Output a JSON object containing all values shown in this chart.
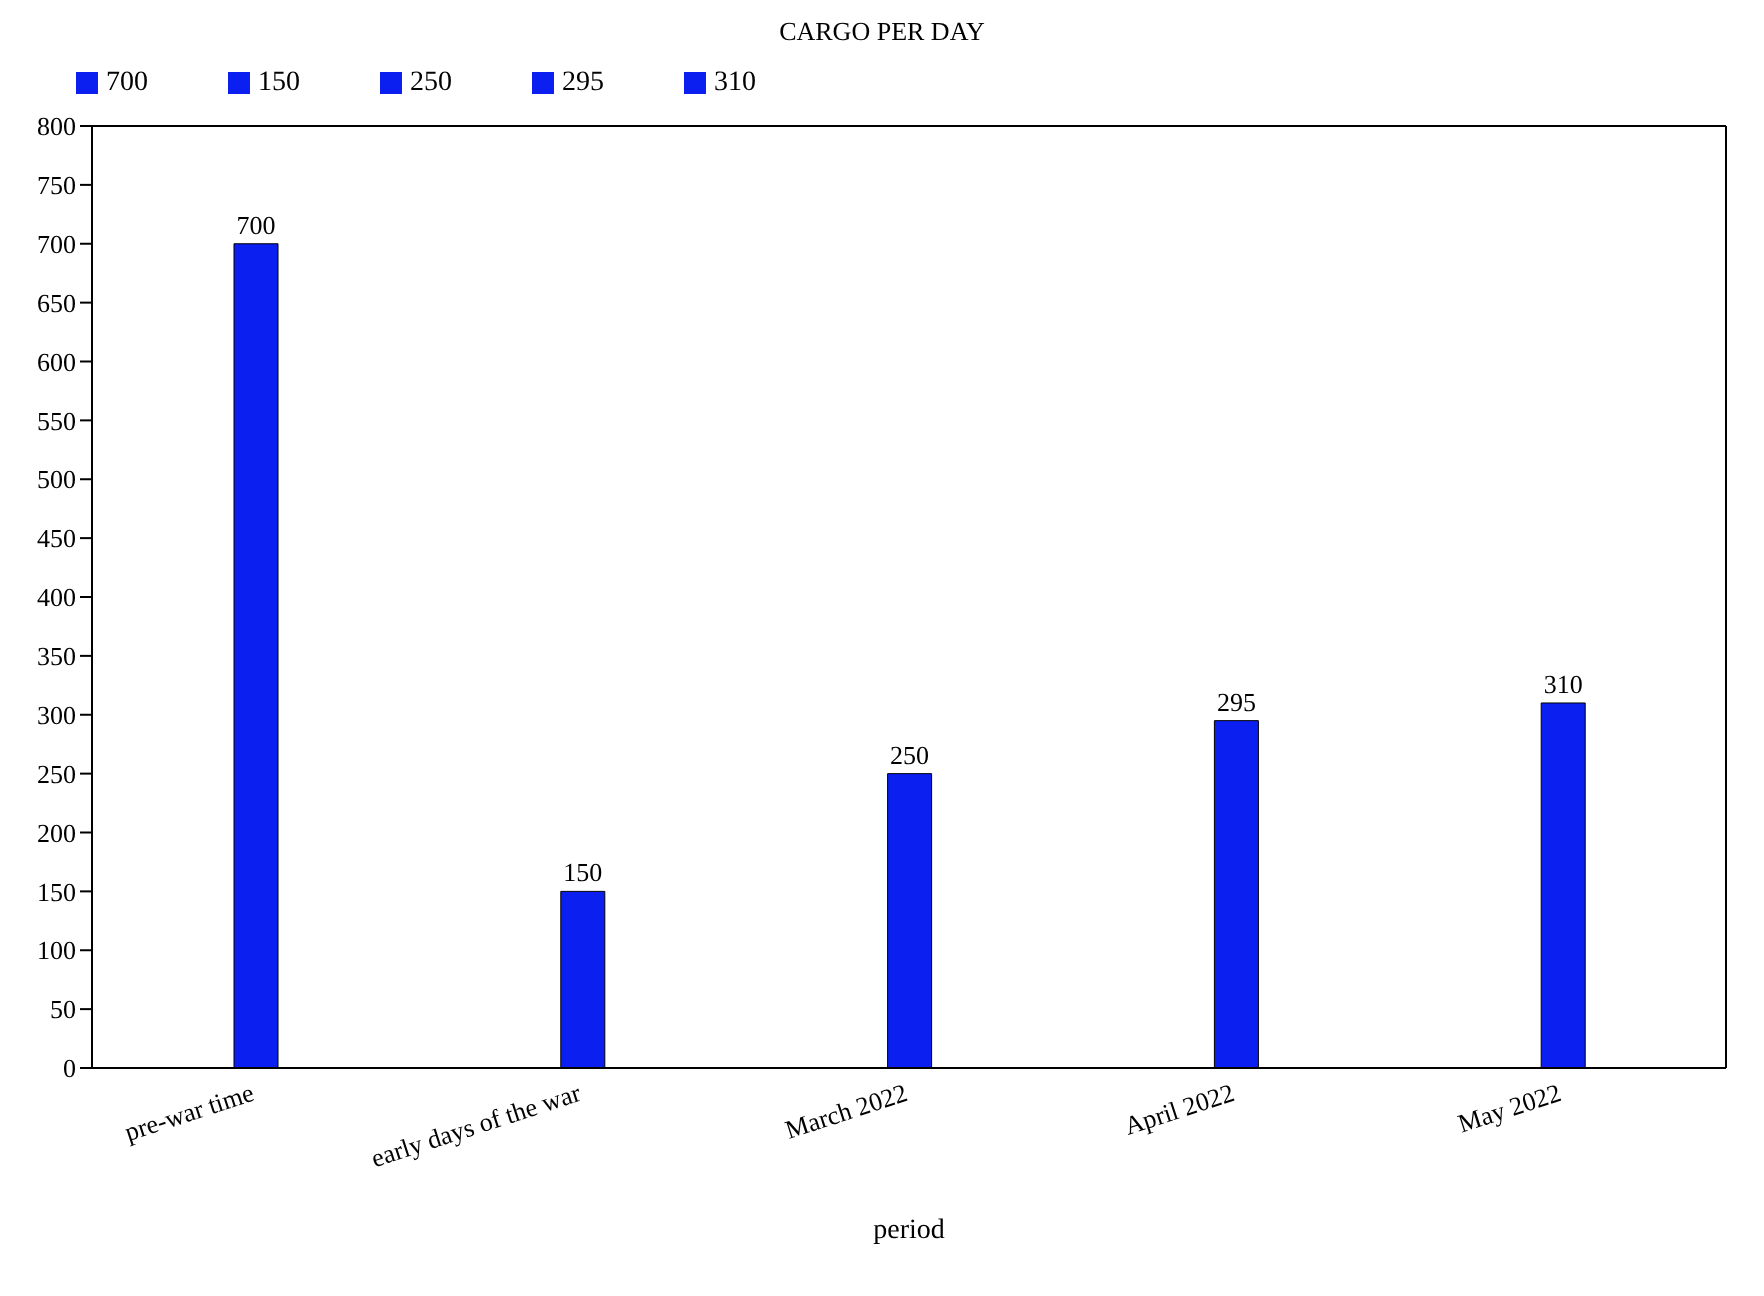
{
  "chart_data": {
    "type": "bar",
    "title": "CARGO PER DAY",
    "xlabel": "period",
    "categories": [
      "pre-war time",
      "early days of the war",
      "March 2022",
      "April 2022",
      "May 2022"
    ],
    "stacked": true,
    "series": [
      {
        "name": "700",
        "color": "#0a1ff0",
        "values": [
          700,
          null,
          null,
          null,
          null
        ]
      },
      {
        "name": "150",
        "color": "#0a1ff0",
        "values": [
          null,
          150,
          null,
          null,
          null
        ]
      },
      {
        "name": "250",
        "color": "#0a1ff0",
        "values": [
          null,
          null,
          250,
          null,
          null
        ]
      },
      {
        "name": "295",
        "color": "#0a1ff0",
        "values": [
          null,
          null,
          null,
          295,
          null
        ]
      },
      {
        "name": "310",
        "color": "#0a1ff0",
        "values": [
          null,
          null,
          null,
          null,
          310
        ]
      }
    ],
    "ylim": [
      0,
      800
    ],
    "yticks": [
      0,
      50,
      100,
      150,
      200,
      250,
      300,
      350,
      400,
      450,
      500,
      550,
      600,
      650,
      700,
      750,
      800
    ],
    "grid": false,
    "legend": "top left",
    "data_labels": true
  }
}
